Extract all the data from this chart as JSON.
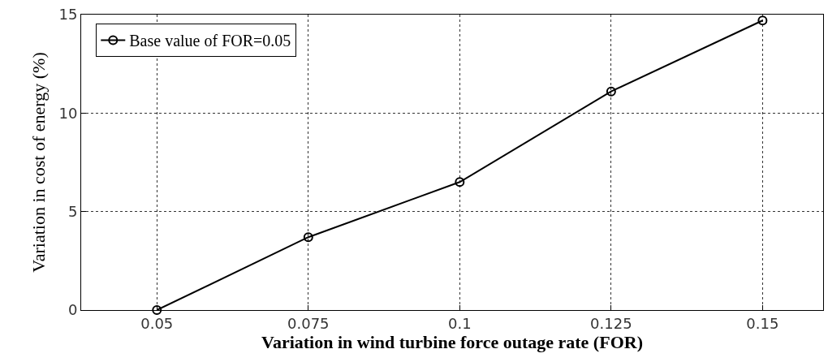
{
  "chart_data": {
    "type": "line",
    "xlabel": "Variation in wind turbine force outage rate (FOR)",
    "ylabel": "Variation in cost of energy (%)",
    "x": [
      0.05,
      0.075,
      0.1,
      0.125,
      0.15
    ],
    "series": [
      {
        "name": "Base value of FOR=0.05",
        "color": "#000000",
        "values": [
          0,
          3.7,
          6.5,
          11.1,
          14.7
        ]
      }
    ],
    "xlim": [
      0.0375,
      0.16
    ],
    "xticks": [
      0.05,
      0.075,
      0.1,
      0.125,
      0.15
    ],
    "ylim": [
      0,
      15
    ],
    "yticks": [
      0,
      5,
      10,
      15
    ],
    "grid": true,
    "legend": "top left",
    "marker": "circle",
    "line_style": "solid"
  }
}
